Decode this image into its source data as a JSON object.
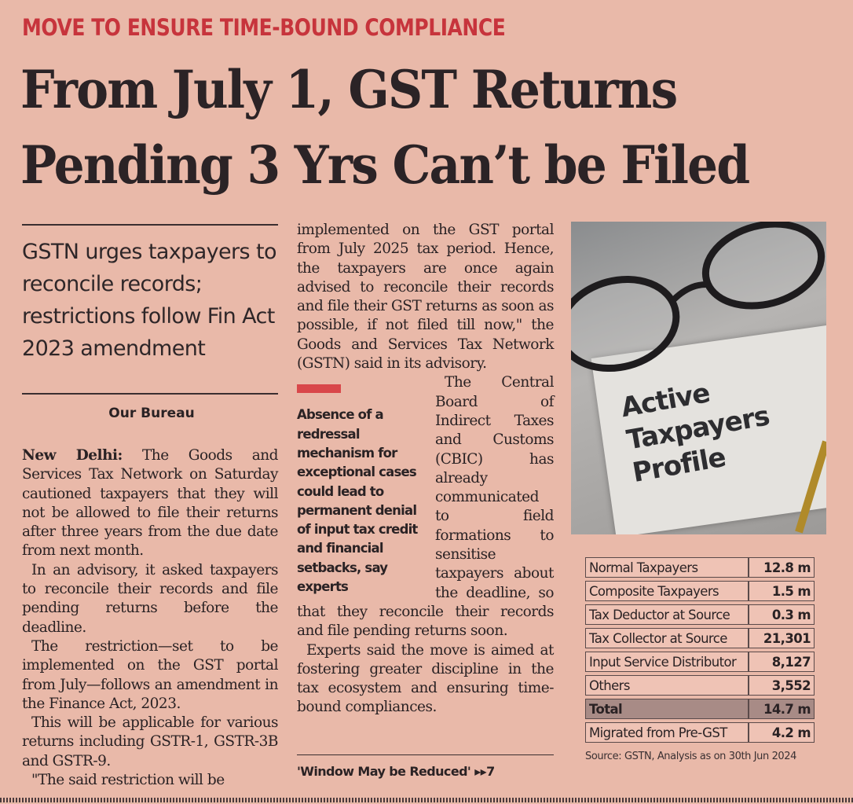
{
  "kicker": "MOVE TO ENSURE TIME-BOUND COMPLIANCE",
  "headline": {
    "line1": "From July 1, GST Returns",
    "line2": "Pending 3 Yrs Can’t be Filed"
  },
  "deck": "GSTN urges taxpayers to reconcile records; restrictions follow Fin Act 2023 amendment",
  "byline": "Our Bureau",
  "column1": [
    {
      "dateline": "New Delhi:",
      "text": " The Goods and Services Tax Network on Saturday cautioned taxpayers that they will not be allowed to file their returns after three years from the due date from next month."
    },
    {
      "text": "In an advisory, it asked taxpayers to reconcile their records and file pending returns before the deadline."
    },
    {
      "text": "The restriction—set to be implemented on the GST portal from July—follows an amendment in the Finance Act, 2023."
    },
    {
      "text": "This will be applicable for various returns including GSTR-1, GSTR-3B and GSTR-9."
    },
    {
      "text": "\"The said restriction will be"
    }
  ],
  "column2": {
    "lead": "implemented on the GST portal from July 2025 tax period. Hence, the taxpayers are once again advised to reconcile their records and file their GST returns as soon as possible, if not filed till now,\" the Goods and Services Tax Network (GSTN) said in its advisory.",
    "para2": "The Central Board of Indirect Taxes and Customs (CBIC) has already communicated to field formations to sensitise taxpayers about the deadline, so that they reconcile their records and file pending returns soon.",
    "para3": "Experts said the move is aimed at fostering greater discipline in the tax ecosystem and ensuring time-bound compliances."
  },
  "pull_quote": "Absence of a redressal mechanism for exceptional cases could lead to permanent denial of input tax credit and financial setbacks, say experts",
  "continued_ref": {
    "text": "'Window May be Reduced'",
    "arrow": "▸▸",
    "page": "7"
  },
  "photo": {
    "card_text": [
      "Active",
      "Taxpayers",
      "Profile"
    ]
  },
  "table": {
    "rows": [
      {
        "label": "Normal Taxpayers",
        "value": "12.8 m"
      },
      {
        "label": "Composite Taxpayers",
        "value": "1.5 m"
      },
      {
        "label": "Tax Deductor at Source",
        "value": "0.3 m"
      },
      {
        "label": "Tax Collector at Source",
        "value": "21,301"
      },
      {
        "label": "Input Service Distributor",
        "value": "8,127"
      },
      {
        "label": "Others",
        "value": "3,552"
      },
      {
        "label": "Total",
        "value": "14.7 m",
        "highlight": true
      },
      {
        "label": "Migrated from Pre-GST",
        "value": "4.2 m"
      }
    ],
    "source": "Source: GSTN, Analysis as on 30th Jun 2024"
  },
  "colors": {
    "paper": "#e9b9a9",
    "kicker": "#c7343c",
    "pull_bar": "#d9474a",
    "ink": "#2a2224"
  }
}
